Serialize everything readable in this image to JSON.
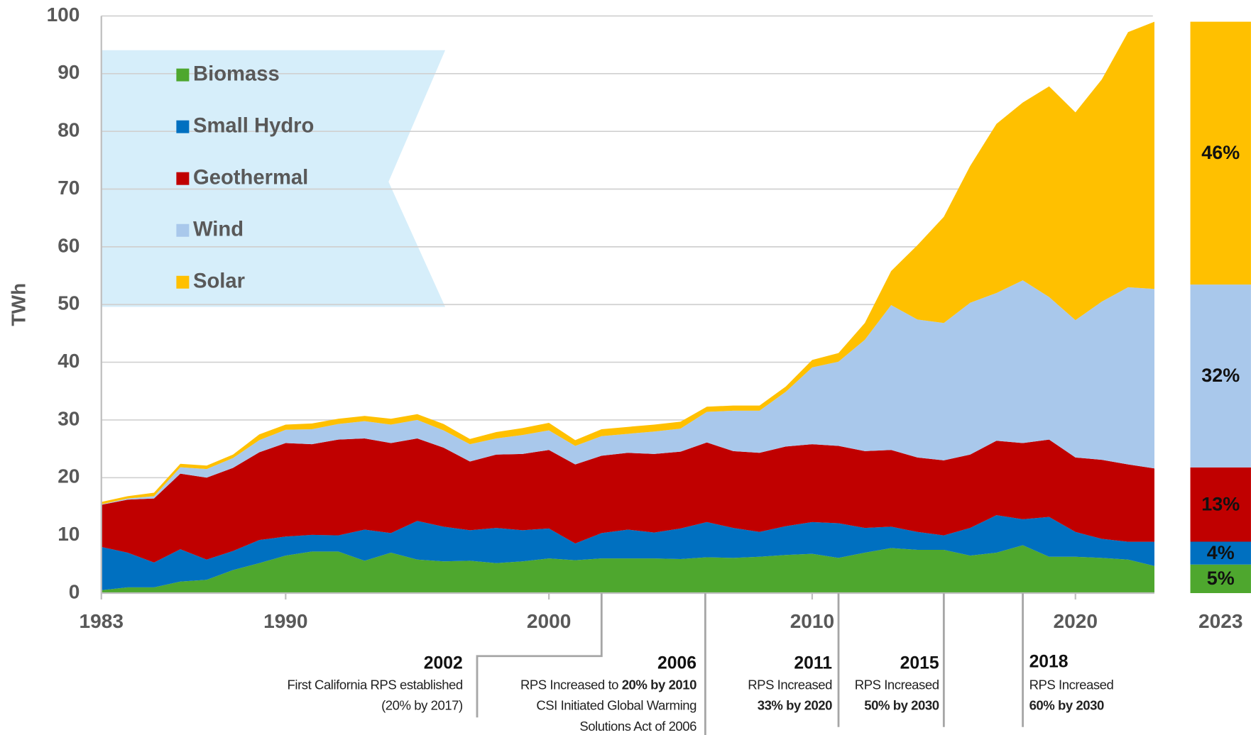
{
  "chart_data": {
    "type": "stacked_area",
    "ylabel": "TWh",
    "x": [
      1983,
      1984,
      1985,
      1986,
      1987,
      1988,
      1989,
      1990,
      1991,
      1992,
      1993,
      1994,
      1995,
      1996,
      1997,
      1998,
      1999,
      2000,
      2001,
      2002,
      2003,
      2004,
      2005,
      2006,
      2007,
      2008,
      2009,
      2010,
      2011,
      2012,
      2013,
      2014,
      2015,
      2016,
      2017,
      2018,
      2019,
      2020,
      2021,
      2022,
      2023
    ],
    "xlim": [
      1983,
      2023
    ],
    "xticks": [
      1983,
      1990,
      2000,
      2010,
      2020
    ],
    "ylim": [
      0,
      100
    ],
    "yticks": [
      0,
      10,
      20,
      30,
      40,
      50,
      60,
      70,
      80,
      90,
      100
    ],
    "grid": true,
    "series": [
      {
        "name": "Biomass",
        "color": "#4ea72e",
        "values": [
          0.5,
          1,
          1,
          2,
          2.3,
          4,
          5.2,
          6.5,
          7.2,
          7.2,
          5.6,
          7,
          5.8,
          5.5,
          5.6,
          5.2,
          5.5,
          6,
          5.7,
          6,
          6,
          6,
          5.9,
          6.2,
          6.1,
          6.3,
          6.6,
          6.8,
          6.1,
          7,
          7.8,
          7.5,
          7.5,
          6.5,
          7,
          8.3,
          6.3,
          6.3,
          6.1,
          5.8,
          4.7
        ]
      },
      {
        "name": "Small Hydro",
        "color": "#0070c0",
        "values": [
          7.5,
          6,
          4.3,
          5.6,
          3.5,
          3.3,
          4,
          3.3,
          2.9,
          2.8,
          5.4,
          3.4,
          6.7,
          6,
          5.3,
          6.1,
          5.4,
          5.2,
          2.9,
          4.4,
          5,
          4.5,
          5.3,
          6.1,
          5.2,
          4.3,
          5,
          5.5,
          6,
          4.3,
          3.7,
          3.1,
          2.5,
          4.8,
          6.5,
          4.5,
          6.9,
          4.3,
          3.3,
          3.1,
          4.2
        ]
      },
      {
        "name": "Geothermal",
        "color": "#c00000",
        "values": [
          7.3,
          9.2,
          11.1,
          13.1,
          14.2,
          14.4,
          15.2,
          16.2,
          15.7,
          16.6,
          15.8,
          15.6,
          14.3,
          13.7,
          11.9,
          12.7,
          13.2,
          13.6,
          13.7,
          13.4,
          13.3,
          13.6,
          13.3,
          13.8,
          13.3,
          13.7,
          13.8,
          13.5,
          13.4,
          13.3,
          13.3,
          12.9,
          13,
          12.7,
          12.9,
          13.2,
          13.4,
          12.9,
          13.7,
          13.4,
          12.7
        ]
      },
      {
        "name": "Wind",
        "color": "#a9c8eb",
        "values": [
          0.1,
          0.2,
          0.4,
          1.1,
          1.5,
          1.7,
          2.1,
          2.3,
          2.6,
          2.7,
          3,
          3.2,
          3.2,
          3,
          3,
          2.8,
          3.3,
          3.4,
          3.2,
          3.4,
          3.3,
          3.9,
          4,
          5.3,
          7,
          7.3,
          9.5,
          13.3,
          14.6,
          19.3,
          25.1,
          23.9,
          23.8,
          26.3,
          25.6,
          28.2,
          24.7,
          23.8,
          27.4,
          30.7,
          31.1
        ]
      },
      {
        "name": "Solar",
        "color": "#ffc000",
        "values": [
          0.4,
          0.4,
          0.6,
          0.6,
          0.6,
          0.6,
          1,
          0.9,
          1,
          0.9,
          0.9,
          1,
          1,
          1.1,
          0.9,
          1.1,
          1.2,
          1.3,
          1,
          1.2,
          1.2,
          1.2,
          1.2,
          0.9,
          0.9,
          0.9,
          0.9,
          1.3,
          1.5,
          2.9,
          5.9,
          12.9,
          18.4,
          23.7,
          29.3,
          30.8,
          36.5,
          36,
          38.5,
          44.2,
          46.3
        ]
      }
    ],
    "share": {
      "category": "2023",
      "values": [
        5,
        4,
        13,
        32,
        46
      ],
      "value_labels": [
        "5%",
        "4%",
        "13%",
        "32%",
        "46%"
      ]
    },
    "annotations": [
      {
        "year": 2002,
        "lines": [
          [
            {
              "text": "First California RPS established"
            }
          ],
          [
            {
              "text": "(20% by 2017)"
            }
          ]
        ]
      },
      {
        "year": 2006,
        "lines": [
          [
            {
              "text": "RPS Increased to "
            },
            {
              "text": "20% by 2010",
              "bold": true
            }
          ],
          [
            {
              "text": "CSI Initiated Global Warming"
            }
          ],
          [
            {
              "text": "Solutions Act of 2006"
            }
          ]
        ]
      },
      {
        "year": 2011,
        "lines": [
          [
            {
              "text": "RPS Increased"
            }
          ],
          [
            {
              "text": "33% by 2020",
              "bold": true
            }
          ]
        ]
      },
      {
        "year": 2015,
        "lines": [
          [
            {
              "text": "RPS Increased"
            }
          ],
          [
            {
              "text": "50% by 2030",
              "bold": true
            }
          ]
        ]
      },
      {
        "year": 2018,
        "lines": [
          [
            {
              "text": "RPS Increased"
            }
          ],
          [
            {
              "text": "60% by 2030",
              "bold": true
            }
          ]
        ]
      }
    ]
  }
}
